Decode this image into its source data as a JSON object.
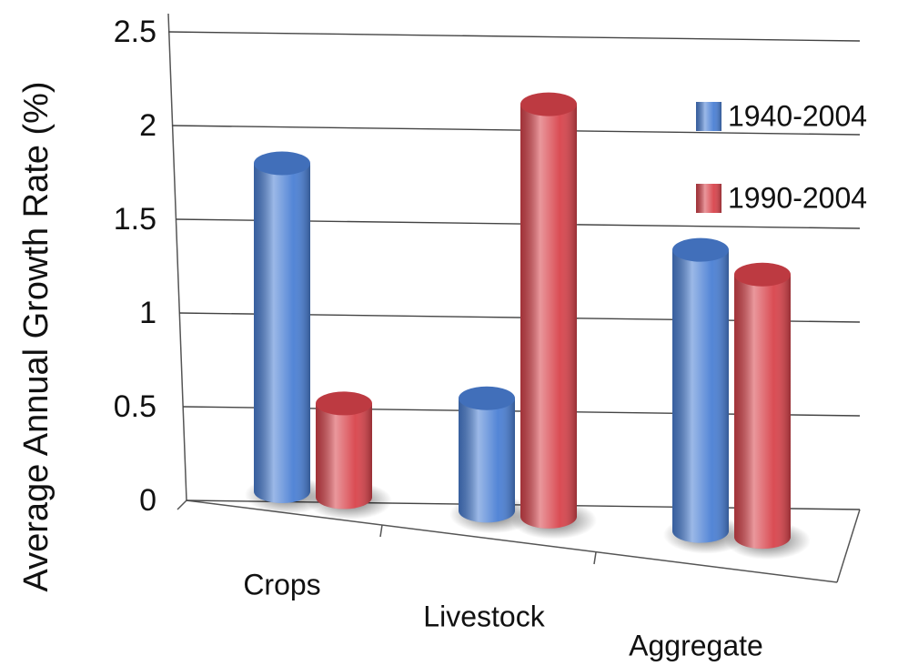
{
  "chart_data": {
    "type": "bar",
    "y_label": "Average Annual Growth Rate (%)",
    "categories": [
      "Crops",
      "Livestock",
      "Aggregate"
    ],
    "series": [
      {
        "name": "1940-2004",
        "color": "#4a7fd4",
        "values": [
          1.75,
          0.6,
          1.5
        ]
      },
      {
        "name": "1990-2004",
        "color": "#d8434b",
        "values": [
          0.5,
          2.2,
          1.4
        ]
      }
    ],
    "ylim": [
      0,
      2.5
    ],
    "yticks": [
      0,
      0.5,
      1,
      1.5,
      2,
      2.5
    ],
    "grid": true
  }
}
